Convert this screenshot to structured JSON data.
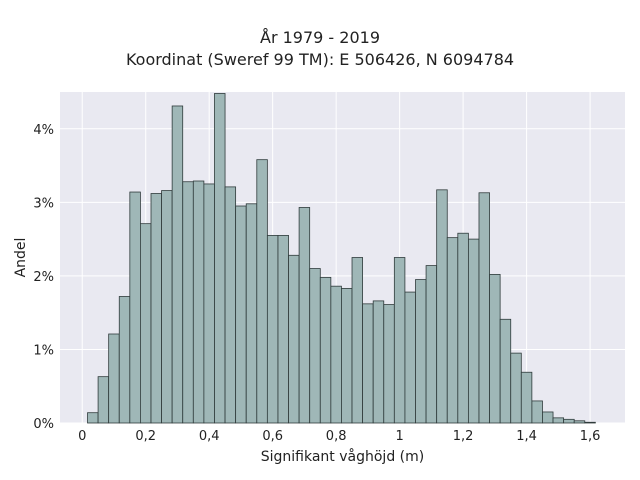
{
  "chart_data": {
    "type": "bar",
    "title": "År 1979 - 2019",
    "subtitle": "Koordinat (Sweref 99 TM): E 506426, N 6094784",
    "xlabel": "Signifikant våghöjd (m)",
    "ylabel": "Andel",
    "xlim": [
      -0.07,
      1.71
    ],
    "ylim": [
      0,
      4.5
    ],
    "grid": true,
    "bin_width": 0.0333,
    "x_ticks": [
      {
        "value": 0,
        "label": "0"
      },
      {
        "value": 0.2,
        "label": "0,2"
      },
      {
        "value": 0.4,
        "label": "0,4"
      },
      {
        "value": 0.6,
        "label": "0,6"
      },
      {
        "value": 0.8,
        "label": "0,8"
      },
      {
        "value": 1.0,
        "label": "1"
      },
      {
        "value": 1.2,
        "label": "1,2"
      },
      {
        "value": 1.4,
        "label": "1,4"
      },
      {
        "value": 1.6,
        "label": "1,6"
      }
    ],
    "y_ticks": [
      {
        "value": 0,
        "label": "0%"
      },
      {
        "value": 1,
        "label": "1%"
      },
      {
        "value": 2,
        "label": "2%"
      },
      {
        "value": 3,
        "label": "3%"
      },
      {
        "value": 4,
        "label": "4%"
      }
    ],
    "bin_starts": [
      0.0167,
      0.05,
      0.0833,
      0.1167,
      0.15,
      0.1833,
      0.2167,
      0.25,
      0.2833,
      0.3167,
      0.35,
      0.3833,
      0.4167,
      0.45,
      0.4833,
      0.5167,
      0.55,
      0.5833,
      0.6167,
      0.65,
      0.6833,
      0.7167,
      0.75,
      0.7833,
      0.8167,
      0.85,
      0.8833,
      0.9167,
      0.95,
      0.9833,
      1.0167,
      1.05,
      1.0833,
      1.1167,
      1.15,
      1.1833,
      1.2167,
      1.25,
      1.2833,
      1.3167,
      1.35,
      1.3833,
      1.4167,
      1.45,
      1.4833,
      1.5167,
      1.55,
      1.5833
    ],
    "values": [
      0.14,
      0.63,
      1.21,
      1.72,
      3.14,
      2.71,
      3.12,
      3.16,
      4.31,
      3.28,
      3.29,
      3.25,
      4.48,
      3.21,
      2.95,
      2.98,
      3.58,
      2.55,
      2.55,
      2.28,
      2.93,
      2.1,
      1.98,
      1.86,
      1.83,
      2.25,
      1.62,
      1.66,
      1.61,
      2.25,
      1.78,
      1.95,
      2.14,
      3.17,
      2.52,
      2.58,
      2.5,
      3.13,
      2.02,
      1.41,
      0.95,
      0.69,
      0.3,
      0.15,
      0.07,
      0.05,
      0.03,
      0.01
    ]
  }
}
